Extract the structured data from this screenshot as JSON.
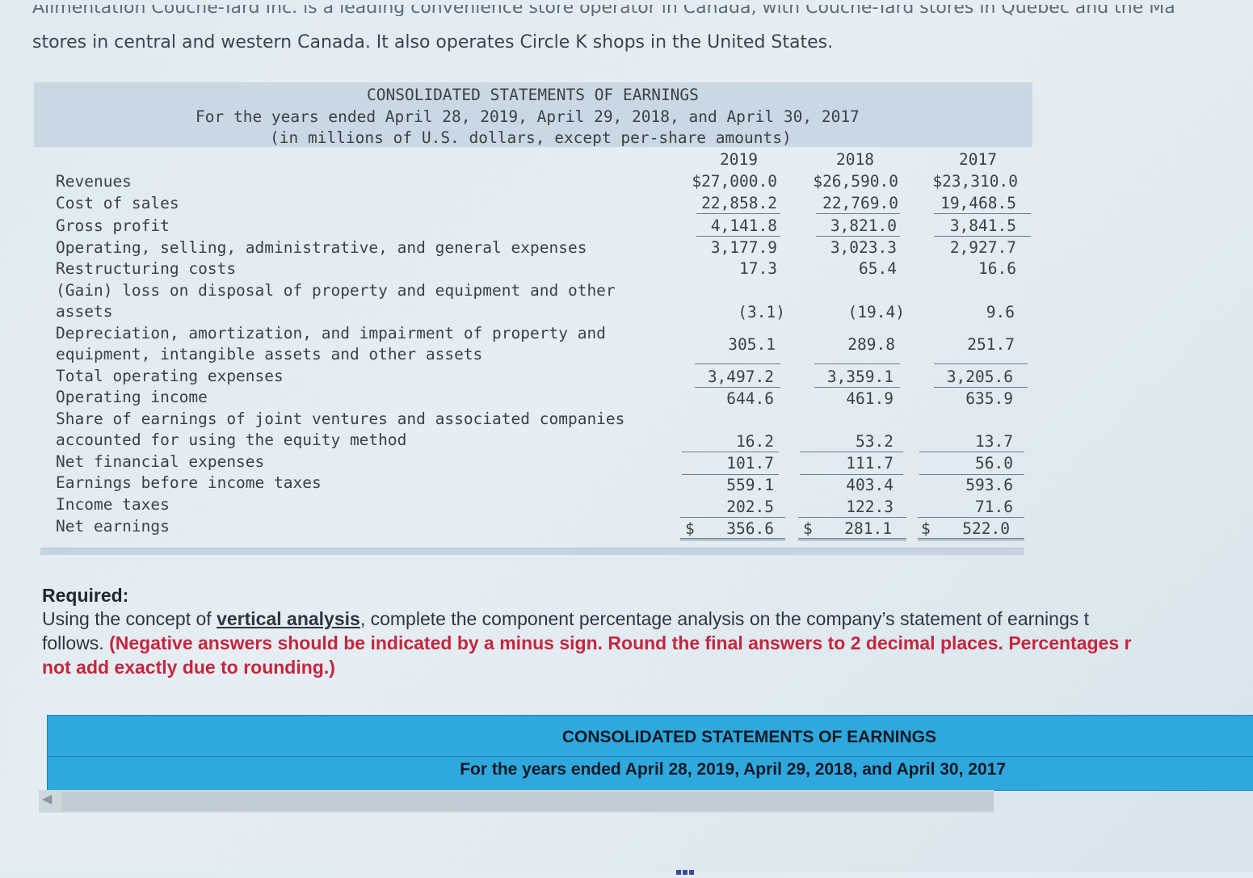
{
  "intro": {
    "cutoff_text": "Alimentation Couche-Tard Inc. is a leading convenience store operator in Canada, with Couche-Tard stores in Quebec and the Ma",
    "line": "stores in central and western Canada. It also operates Circle K shops in the United States."
  },
  "statement": {
    "title": "CONSOLIDATED STATEMENTS OF EARNINGS",
    "subtitle": "For the years ended April 28, 2019, April 29, 2018, and April 30, 2017",
    "units": "(in millions of U.S. dollars, except per-share amounts)",
    "years": [
      "2019",
      "2018",
      "2017"
    ],
    "rows": [
      {
        "label": "Revenues",
        "values": [
          "$27,000.0",
          "$26,590.0",
          "$23,310.0"
        ]
      },
      {
        "label": "Cost of sales",
        "values": [
          "22,858.2",
          "22,769.0",
          "19,468.5"
        ]
      },
      {
        "label": "Gross profit",
        "values": [
          "4,141.8",
          "3,821.0",
          "3,841.5"
        ]
      },
      {
        "label": "Operating, selling, administrative, and general expenses",
        "values": [
          "3,177.9",
          "3,023.3",
          "2,927.7"
        ]
      },
      {
        "label": "Restructuring costs",
        "values": [
          "17.3",
          "65.4",
          "16.6"
        ]
      },
      {
        "label": "(Gain) loss on disposal of property and equipment and other",
        "label2": "assets",
        "values": [
          "(3.1)",
          "(19.4)",
          "9.6"
        ]
      },
      {
        "label": "Depreciation, amortization, and impairment of property and",
        "label2": "equipment, intangible assets and other assets",
        "values": [
          "305.1",
          "289.8",
          "251.7"
        ]
      },
      {
        "label": "Total operating expenses",
        "values": [
          "3,497.2",
          "3,359.1",
          "3,205.6"
        ]
      },
      {
        "label": "Operating income",
        "values": [
          "644.6",
          "461.9",
          "635.9"
        ]
      },
      {
        "label": "Share of earnings of joint ventures and associated companies",
        "label2": "accounted for using the equity method",
        "values": [
          "16.2",
          "53.2",
          "13.7"
        ]
      },
      {
        "label": "Net financial expenses",
        "values": [
          "101.7",
          "111.7",
          "56.0"
        ]
      },
      {
        "label": "Earnings before income taxes",
        "values": [
          "559.1",
          "403.4",
          "593.6"
        ]
      },
      {
        "label": "Income taxes",
        "values": [
          "202.5",
          "122.3",
          "71.6"
        ]
      },
      {
        "label": "Net earnings",
        "values": [
          "356.6",
          "281.1",
          "522.0"
        ],
        "currency": "$"
      }
    ]
  },
  "required": {
    "heading": "Required:",
    "text_before": "Using the concept of ",
    "link": "vertical analysis",
    "text_after": ", complete the component percentage analysis on the company’s statement of earnings t",
    "line2_start": "follows. ",
    "red_text": "(Negative answers should be indicated by a minus sign. Round the final answers to 2 decimal places. Percentages r",
    "red_text2": "not add exactly due to rounding.)"
  },
  "answer_table": {
    "title": "CONSOLIDATED STATEMENTS OF EARNINGS",
    "subtitle": "For the years ended April 28, 2019, April 29, 2018, and April 30, 2017"
  },
  "colors": {
    "accent_blue": "#2fa8de",
    "red_instruction": "#c6263e",
    "title_band": "#c9d8e3"
  }
}
